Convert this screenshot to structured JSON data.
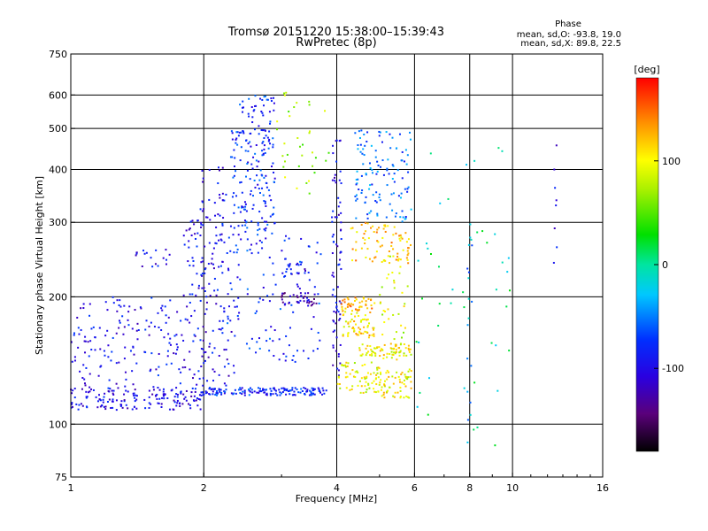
{
  "chart_data": {
    "type": "scatter",
    "title": "Tromsø 20151220 15:38:00–15:39:43",
    "subtitle": "RwPretec (8p)",
    "xlabel": "Frequency [MHz]",
    "ylabel": "Stationary phase Virtual Height [km]",
    "xscale": "log",
    "yscale": "log",
    "xlim": [
      1,
      16
    ],
    "ylim": [
      75,
      750
    ],
    "xticks": [
      1,
      2,
      4,
      6,
      8,
      10,
      16
    ],
    "yticks": [
      75,
      100,
      200,
      300,
      400,
      500,
      600,
      750
    ],
    "grid_x": [
      2,
      4,
      6,
      8,
      10
    ],
    "grid_y": [
      100,
      200,
      300,
      400,
      500,
      600
    ],
    "grid": true,
    "stats": {
      "heading": "Phase",
      "line_o": "mean, sd,O: -93.8, 19.0",
      "line_x": "mean, sd,X: 89.8, 22.5"
    },
    "colorbar": {
      "label": "[deg]",
      "range": [
        -180,
        180
      ],
      "ticks": [
        100,
        0,
        -100
      ],
      "colormap": "rainbow"
    },
    "clusters": [
      {
        "f": [
          1.0,
          2.0
        ],
        "h": [
          108,
          122
        ],
        "phase": -100,
        "n": 160
      },
      {
        "f": [
          1.0,
          2.4
        ],
        "h": [
          120,
          200
        ],
        "phase": -95,
        "n": 240
      },
      {
        "f": [
          1.4,
          1.7
        ],
        "h": [
          235,
          260
        ],
        "phase": -95,
        "n": 18
      },
      {
        "f": [
          1.8,
          2.3
        ],
        "h": [
          200,
          310
        ],
        "phase": -95,
        "n": 90
      },
      {
        "f": [
          1.95,
          2.25
        ],
        "h": [
          310,
          410
        ],
        "phase": -95,
        "n": 25
      },
      {
        "f": [
          2.0,
          3.8
        ],
        "h": [
          117,
          122
        ],
        "phase": -80,
        "n": 150
      },
      {
        "f": [
          2.3,
          2.9
        ],
        "h": [
          280,
          500
        ],
        "phase": -80,
        "n": 160
      },
      {
        "f": [
          2.4,
          2.9
        ],
        "h": [
          500,
          600
        ],
        "phase": -80,
        "n": 35
      },
      {
        "f": [
          2.2,
          3.7
        ],
        "h": [
          140,
          280
        ],
        "phase": -80,
        "n": 110
      },
      {
        "f": [
          3.0,
          3.6
        ],
        "h": [
          190,
          205
        ],
        "phase": -120,
        "n": 40
      },
      {
        "f": [
          3.0,
          3.5
        ],
        "h": [
          225,
          240
        ],
        "phase": -100,
        "n": 20
      },
      {
        "f": [
          2.9,
          3.9
        ],
        "h": [
          350,
          620
        ],
        "phase": 70,
        "n": 35
      },
      {
        "f": [
          3.9,
          4.1
        ],
        "h": [
          130,
          470
        ],
        "phase": -100,
        "n": 80
      },
      {
        "f": [
          4.0,
          5.0
        ],
        "h": [
          118,
          140
        ],
        "phase": 95,
        "n": 60
      },
      {
        "f": [
          4.1,
          4.9
        ],
        "h": [
          160,
          185
        ],
        "phase": 110,
        "n": 60
      },
      {
        "f": [
          4.5,
          5.9
        ],
        "h": [
          145,
          155
        ],
        "phase": 100,
        "n": 70
      },
      {
        "f": [
          4.9,
          5.9
        ],
        "h": [
          115,
          135
        ],
        "phase": 100,
        "n": 70
      },
      {
        "f": [
          4.1,
          4.9
        ],
        "h": [
          185,
          200
        ],
        "phase": 130,
        "n": 45
      },
      {
        "f": [
          4.3,
          5.9
        ],
        "h": [
          240,
          300
        ],
        "phase": 120,
        "n": 80
      },
      {
        "f": [
          4.4,
          5.9
        ],
        "h": [
          300,
          500
        ],
        "phase": -60,
        "n": 120
      },
      {
        "f": [
          5.0,
          5.8
        ],
        "h": [
          140,
          260
        ],
        "phase": 90,
        "n": 40
      },
      {
        "f": [
          6.0,
          10.0
        ],
        "h": [
          85,
          500
        ],
        "phase": 0,
        "n": 45
      },
      {
        "f": [
          7.9,
          8.1
        ],
        "h": [
          80,
          350
        ],
        "phase": -40,
        "n": 18
      },
      {
        "f": [
          12.4,
          12.6
        ],
        "h": [
          240,
          510
        ],
        "phase": -100,
        "n": 8
      }
    ]
  }
}
